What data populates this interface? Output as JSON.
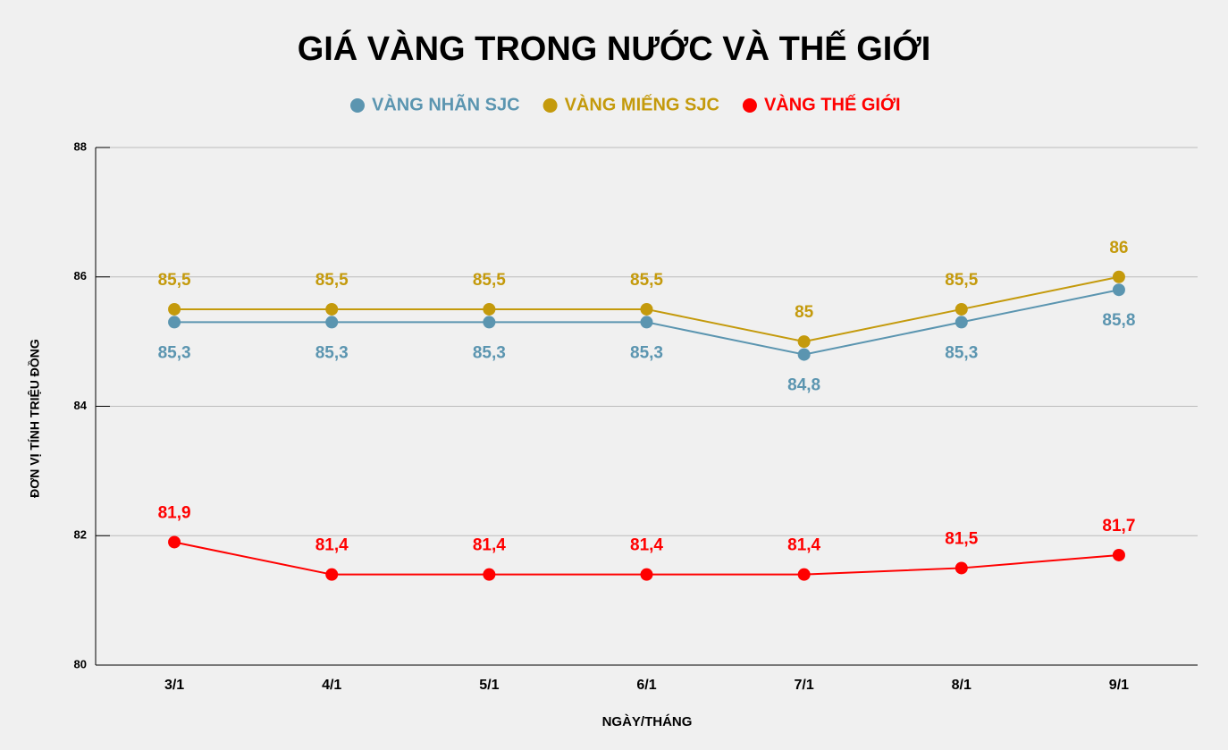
{
  "chart_data": {
    "type": "line",
    "title": "GIÁ VÀNG TRONG NƯỚC VÀ THẾ GIỚI",
    "x_label": "NGÀY/THÁNG",
    "y_label": "ĐƠN VỊ TÍNH TRIỆU ĐỒNG",
    "categories": [
      "3/1",
      "4/1",
      "5/1",
      "6/1",
      "7/1",
      "8/1",
      "9/1"
    ],
    "series": [
      {
        "name": "VÀNG NHÃN SJC",
        "color": "#5b95b0",
        "values": [
          85.3,
          85.3,
          85.3,
          85.3,
          84.8,
          85.3,
          85.8
        ],
        "value_labels": [
          "85,3",
          "85,3",
          "85,3",
          "85,3",
          "84,8",
          "85,3",
          "85,8"
        ]
      },
      {
        "name": "VÀNG MIẾNG SJC",
        "color": "#c49a0c",
        "values": [
          85.5,
          85.5,
          85.5,
          85.5,
          85,
          85.5,
          86
        ],
        "value_labels": [
          "85,5",
          "85,5",
          "85,5",
          "85,5",
          "85",
          "85,5",
          "86"
        ]
      },
      {
        "name": "VÀNG THẾ GIỚI",
        "color": "#ff0000",
        "values": [
          81.9,
          81.4,
          81.4,
          81.4,
          81.4,
          81.5,
          81.7
        ],
        "value_labels": [
          "81,9",
          "81,4",
          "81,4",
          "81,4",
          "81,4",
          "81,5",
          "81,7"
        ]
      }
    ],
    "ylim": [
      80,
      88
    ],
    "yticks": [
      80,
      82,
      84,
      86,
      88
    ],
    "grid": true
  }
}
